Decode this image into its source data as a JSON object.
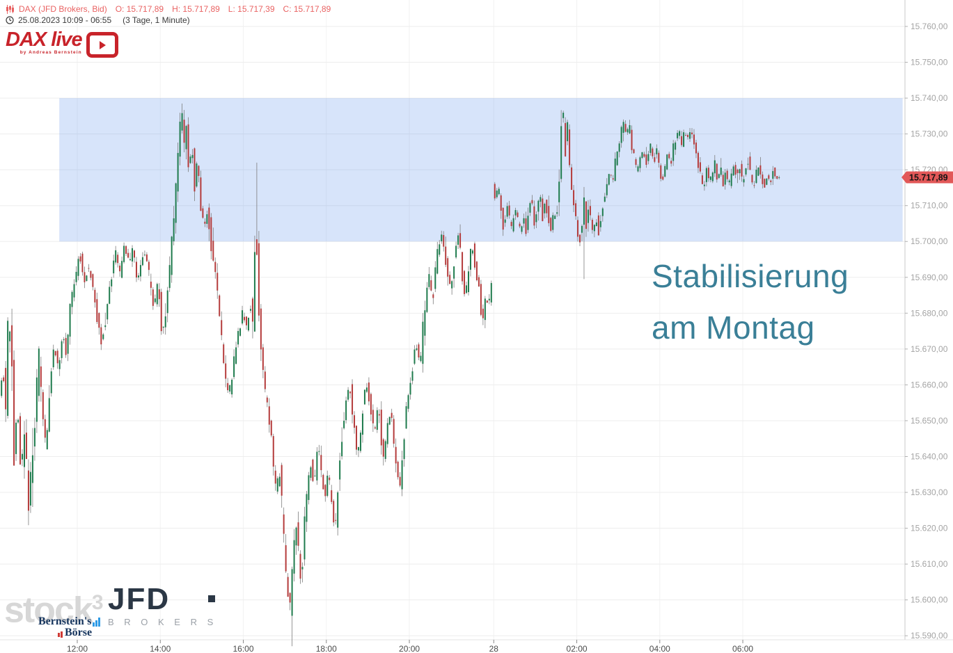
{
  "header": {
    "symbol": "DAX (JFD Brokers, Bid)",
    "o": "O: 15.717,89",
    "h": "H: 15.717,89",
    "l": "L: 15.717,39",
    "c": "C: 15.717,89",
    "datetime": "25.08.2023 10:09 - 06:55",
    "timeframe": "(3 Tage, 1 Minute)"
  },
  "logo": {
    "title": "DAX live",
    "subtitle": "by Andreas Bernstein"
  },
  "annotation": {
    "line1": "Stabilisierung",
    "line2": "am Montag",
    "color": "#3a7f97"
  },
  "price_tag": {
    "label": "15.717,89",
    "bg": "#e25858",
    "text_color": "#141414"
  },
  "watermarks": {
    "stock3_text": "stock",
    "stock3_sup": "3",
    "jfd": "JFD",
    "jfd_sub": "B R O K E R S",
    "bernstein": "Bernstein's",
    "boerse": "Börse"
  },
  "chart_data": {
    "type": "candlestick",
    "title": "DAX (JFD Brokers, Bid) 1-minute candles, 25.08.2023 10:09 - 28.08.2023 06:55",
    "ylim": [
      15590,
      15760
    ],
    "grid": true,
    "y_ticks": [
      {
        "v": 15760,
        "label": "15.760,00"
      },
      {
        "v": 15750,
        "label": "15.750,00"
      },
      {
        "v": 15740,
        "label": "15.740,00"
      },
      {
        "v": 15730,
        "label": "15.730,00"
      },
      {
        "v": 15720,
        "label": "15.720,00"
      },
      {
        "v": 15710,
        "label": "15.710,00"
      },
      {
        "v": 15700,
        "label": "15.700,00"
      },
      {
        "v": 15690,
        "label": "15.690,00"
      },
      {
        "v": 15680,
        "label": "15.680,00"
      },
      {
        "v": 15670,
        "label": "15.670,00"
      },
      {
        "v": 15660,
        "label": "15.660,00"
      },
      {
        "v": 15650,
        "label": "15.650,00"
      },
      {
        "v": 15640,
        "label": "15.640,00"
      },
      {
        "v": 15630,
        "label": "15.630,00"
      },
      {
        "v": 15620,
        "label": "15.620,00"
      },
      {
        "v": 15610,
        "label": "15.610,00"
      },
      {
        "v": 15600,
        "label": "15.600,00"
      },
      {
        "v": 15590,
        "label": "15.590,00"
      }
    ],
    "x_ticks": [
      {
        "label": "12:00",
        "m": 111
      },
      {
        "label": "14:00",
        "m": 231
      },
      {
        "label": "16:00",
        "m": 351
      },
      {
        "label": "18:00",
        "m": 471
      },
      {
        "label": "20:00",
        "m": 591
      },
      {
        "label": "28",
        "m": 713
      },
      {
        "label": "02:00",
        "m": 833
      },
      {
        "label": "04:00",
        "m": 953
      },
      {
        "label": "06:00",
        "m": 1073
      }
    ],
    "sessions": [
      {
        "start_m": 0,
        "end_m": 711
      },
      {
        "start_m": 713,
        "end_m": 1126
      }
    ],
    "highlight_box": {
      "price_top": 15740,
      "price_bottom": 15700,
      "m_start": 85,
      "m_end": 1304,
      "color": "rgba(95,147,235,0.25)"
    },
    "last_price": 15717.89,
    "last_candle": {
      "o": 15717.89,
      "h": 15717.89,
      "l": 15717.39,
      "c": 15717.89
    },
    "bar_minutes": 3,
    "up_color": "#1f7b4d",
    "down_color": "#b43b3b",
    "wick_color": "#7d7d7d",
    "path": [
      [
        0,
        15658
      ],
      [
        5,
        15665
      ],
      [
        9,
        15653
      ],
      [
        13,
        15681
      ],
      [
        17,
        15671
      ],
      [
        21,
        15642
      ],
      [
        26,
        15653
      ],
      [
        31,
        15635
      ],
      [
        36,
        15646
      ],
      [
        42,
        15626
      ],
      [
        47,
        15639
      ],
      [
        52,
        15654
      ],
      [
        57,
        15667
      ],
      [
        62,
        15651
      ],
      [
        67,
        15642
      ],
      [
        72,
        15659
      ],
      [
        79,
        15671
      ],
      [
        85,
        15664
      ],
      [
        91,
        15674
      ],
      [
        97,
        15667
      ],
      [
        103,
        15683
      ],
      [
        110,
        15690
      ],
      [
        116,
        15697
      ],
      [
        122,
        15687
      ],
      [
        128,
        15694
      ],
      [
        134,
        15688
      ],
      [
        141,
        15679
      ],
      [
        147,
        15672
      ],
      [
        154,
        15679
      ],
      [
        161,
        15689
      ],
      [
        168,
        15697
      ],
      [
        174,
        15691
      ],
      [
        181,
        15699
      ],
      [
        187,
        15694
      ],
      [
        193,
        15699
      ],
      [
        199,
        15688
      ],
      [
        205,
        15694
      ],
      [
        211,
        15698
      ],
      [
        217,
        15689
      ],
      [
        223,
        15681
      ],
      [
        229,
        15690
      ],
      [
        235,
        15674
      ],
      [
        241,
        15681
      ],
      [
        247,
        15694
      ],
      [
        252,
        15708
      ],
      [
        257,
        15721
      ],
      [
        263,
        15737
      ],
      [
        267,
        15725
      ],
      [
        270,
        15731
      ],
      [
        274,
        15719
      ],
      [
        278,
        15727
      ],
      [
        282,
        15716
      ],
      [
        286,
        15723
      ],
      [
        291,
        15710
      ],
      [
        296,
        15704
      ],
      [
        301,
        15709
      ],
      [
        306,
        15699
      ],
      [
        311,
        15692
      ],
      [
        316,
        15684
      ],
      [
        321,
        15672
      ],
      [
        326,
        15663
      ],
      [
        331,
        15656
      ],
      [
        336,
        15663
      ],
      [
        341,
        15669
      ],
      [
        347,
        15676
      ],
      [
        352,
        15681
      ],
      [
        357,
        15676
      ],
      [
        362,
        15682
      ],
      [
        367,
        15677
      ],
      [
        370,
        15712
      ],
      [
        373,
        15690
      ],
      [
        377,
        15673
      ],
      [
        382,
        15661
      ],
      [
        387,
        15654
      ],
      [
        392,
        15647
      ],
      [
        396,
        15638
      ],
      [
        400,
        15628
      ],
      [
        404,
        15639
      ],
      [
        408,
        15626
      ],
      [
        412,
        15613
      ],
      [
        416,
        15603
      ],
      [
        420,
        15597
      ],
      [
        424,
        15609
      ],
      [
        428,
        15622
      ],
      [
        432,
        15613
      ],
      [
        436,
        15604
      ],
      [
        440,
        15618
      ],
      [
        445,
        15630
      ],
      [
        450,
        15639
      ],
      [
        455,
        15631
      ],
      [
        460,
        15645
      ],
      [
        465,
        15636
      ],
      [
        470,
        15628
      ],
      [
        475,
        15636
      ],
      [
        480,
        15627
      ],
      [
        485,
        15619
      ],
      [
        490,
        15634
      ],
      [
        495,
        15646
      ],
      [
        500,
        15655
      ],
      [
        506,
        15660
      ],
      [
        512,
        15649
      ],
      [
        518,
        15640
      ],
      [
        524,
        15652
      ],
      [
        530,
        15661
      ],
      [
        536,
        15654
      ],
      [
        542,
        15646
      ],
      [
        548,
        15655
      ],
      [
        554,
        15637
      ],
      [
        560,
        15648
      ],
      [
        566,
        15654
      ],
      [
        572,
        15640
      ],
      [
        578,
        15631
      ],
      [
        584,
        15645
      ],
      [
        590,
        15656
      ],
      [
        596,
        15664
      ],
      [
        602,
        15672
      ],
      [
        608,
        15666
      ],
      [
        614,
        15680
      ],
      [
        620,
        15691
      ],
      [
        626,
        15683
      ],
      [
        632,
        15695
      ],
      [
        638,
        15702
      ],
      [
        643,
        15696
      ],
      [
        648,
        15691
      ],
      [
        653,
        15686
      ],
      [
        658,
        15697
      ],
      [
        663,
        15702
      ],
      [
        668,
        15693
      ],
      [
        673,
        15683
      ],
      [
        678,
        15692
      ],
      [
        683,
        15700
      ],
      [
        688,
        15693
      ],
      [
        693,
        15687
      ],
      [
        698,
        15677
      ],
      [
        703,
        15685
      ],
      [
        707,
        15681
      ],
      [
        711,
        15688
      ],
      [
        713,
        15716
      ],
      [
        717,
        15711
      ],
      [
        721,
        15717
      ],
      [
        725,
        15708
      ],
      [
        729,
        15703
      ],
      [
        733,
        15711
      ],
      [
        737,
        15706
      ],
      [
        741,
        15703
      ],
      [
        745,
        15710
      ],
      [
        749,
        15706
      ],
      [
        753,
        15702
      ],
      [
        757,
        15708
      ],
      [
        761,
        15703
      ],
      [
        765,
        15709
      ],
      [
        769,
        15712
      ],
      [
        773,
        15705
      ],
      [
        777,
        15709
      ],
      [
        781,
        15713
      ],
      [
        785,
        15707
      ],
      [
        789,
        15712
      ],
      [
        793,
        15706
      ],
      [
        797,
        15704
      ],
      [
        801,
        15708
      ],
      [
        805,
        15706
      ],
      [
        809,
        15719
      ],
      [
        812,
        15734
      ],
      [
        815,
        15735
      ],
      [
        818,
        15726
      ],
      [
        821,
        15731
      ],
      [
        824,
        15721
      ],
      [
        827,
        15716
      ],
      [
        830,
        15710
      ],
      [
        834,
        15705
      ],
      [
        838,
        15700
      ],
      [
        842,
        15703
      ],
      [
        845,
        15710
      ],
      [
        848,
        15705
      ],
      [
        851,
        15711
      ],
      [
        854,
        15706
      ],
      [
        858,
        15702
      ],
      [
        862,
        15707
      ],
      [
        866,
        15703
      ],
      [
        870,
        15708
      ],
      [
        874,
        15712
      ],
      [
        878,
        15716
      ],
      [
        882,
        15720
      ],
      [
        886,
        15716
      ],
      [
        890,
        15722
      ],
      [
        894,
        15726
      ],
      [
        898,
        15730
      ],
      [
        902,
        15733
      ],
      [
        906,
        15729
      ],
      [
        910,
        15733
      ],
      [
        914,
        15727
      ],
      [
        918,
        15722
      ],
      [
        922,
        15719
      ],
      [
        926,
        15723
      ],
      [
        930,
        15726
      ],
      [
        934,
        15721
      ],
      [
        938,
        15725
      ],
      [
        942,
        15727
      ],
      [
        946,
        15722
      ],
      [
        950,
        15726
      ],
      [
        954,
        15719
      ],
      [
        958,
        15717
      ],
      [
        962,
        15721
      ],
      [
        966,
        15725
      ],
      [
        970,
        15721
      ],
      [
        974,
        15726
      ],
      [
        978,
        15729
      ],
      [
        982,
        15731
      ],
      [
        986,
        15727
      ],
      [
        990,
        15731
      ],
      [
        994,
        15728
      ],
      [
        998,
        15731
      ],
      [
        1002,
        15729
      ],
      [
        1006,
        15725
      ],
      [
        1010,
        15721
      ],
      [
        1014,
        15718
      ],
      [
        1018,
        15715
      ],
      [
        1022,
        15720
      ],
      [
        1026,
        15716
      ],
      [
        1030,
        15719
      ],
      [
        1034,
        15722
      ],
      [
        1038,
        15717
      ],
      [
        1042,
        15721
      ],
      [
        1046,
        15716
      ],
      [
        1050,
        15720
      ],
      [
        1054,
        15715
      ],
      [
        1058,
        15719
      ],
      [
        1062,
        15722
      ],
      [
        1066,
        15717
      ],
      [
        1070,
        15721
      ],
      [
        1074,
        15716
      ],
      [
        1078,
        15720
      ],
      [
        1082,
        15723
      ],
      [
        1086,
        15718
      ],
      [
        1090,
        15715
      ],
      [
        1094,
        15719
      ],
      [
        1098,
        15721
      ],
      [
        1102,
        15717
      ],
      [
        1106,
        15715
      ],
      [
        1110,
        15719
      ],
      [
        1114,
        15716
      ],
      [
        1118,
        15720
      ],
      [
        1122,
        15718
      ],
      [
        1126,
        15717.89
      ]
    ],
    "spikes": [
      {
        "m": 263,
        "high": 15738.5
      },
      {
        "m": 370,
        "high": 15722
      },
      {
        "m": 420,
        "low": 15594.5
      },
      {
        "m": 812,
        "high": 15736.5
      },
      {
        "m": 842,
        "low": 15689.5
      }
    ]
  }
}
